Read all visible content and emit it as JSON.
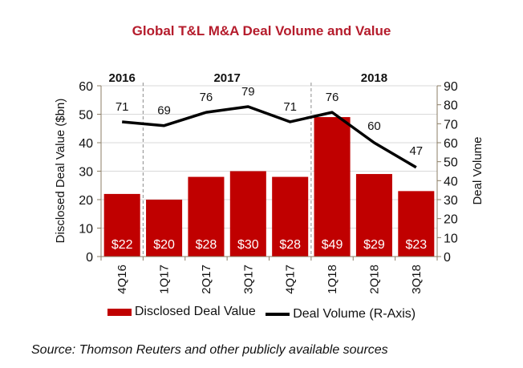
{
  "chart_data": {
    "type": "bar+line",
    "title": "Global T&L M&A Deal Volume and Value",
    "categories": [
      "4Q16",
      "1Q17",
      "2Q17",
      "3Q17",
      "4Q17",
      "1Q18",
      "2Q18",
      "3Q18"
    ],
    "series": [
      {
        "name": "Disclosed Deal Value",
        "type": "bar",
        "axis": "left",
        "color": "#c00000",
        "values": [
          22,
          20,
          28,
          30,
          28,
          49,
          29,
          23
        ],
        "labels": [
          "$22",
          "$20",
          "$28",
          "$30",
          "$28",
          "$49",
          "$29",
          "$23"
        ]
      },
      {
        "name": "Deal Volume (R-Axis)",
        "type": "line",
        "axis": "right",
        "color": "#000000",
        "values": [
          71,
          69,
          76,
          79,
          71,
          76,
          60,
          47
        ],
        "labels": [
          "71",
          "69",
          "76",
          "79",
          "71",
          "76",
          "60",
          "47"
        ]
      }
    ],
    "year_groups": [
      {
        "label": "2016",
        "start": 0,
        "end": 0
      },
      {
        "label": "2017",
        "start": 1,
        "end": 4
      },
      {
        "label": "2018",
        "start": 5,
        "end": 7
      }
    ],
    "ylabel": "Disclosed Deal Value ($bn)",
    "ylim": [
      0,
      60
    ],
    "yticks": [
      0,
      10,
      20,
      30,
      40,
      50,
      60
    ],
    "y2label": "Deal Volume",
    "y2lim": [
      0,
      90
    ],
    "y2ticks": [
      0,
      10,
      20,
      30,
      40,
      50,
      60,
      70,
      80,
      90
    ],
    "grid": true,
    "legend_position": "bottom",
    "legend": [
      "Disclosed Deal Value",
      "Deal Volume (R-Axis)"
    ]
  },
  "source_note": "Source: Thomson Reuters and other publicly available sources"
}
